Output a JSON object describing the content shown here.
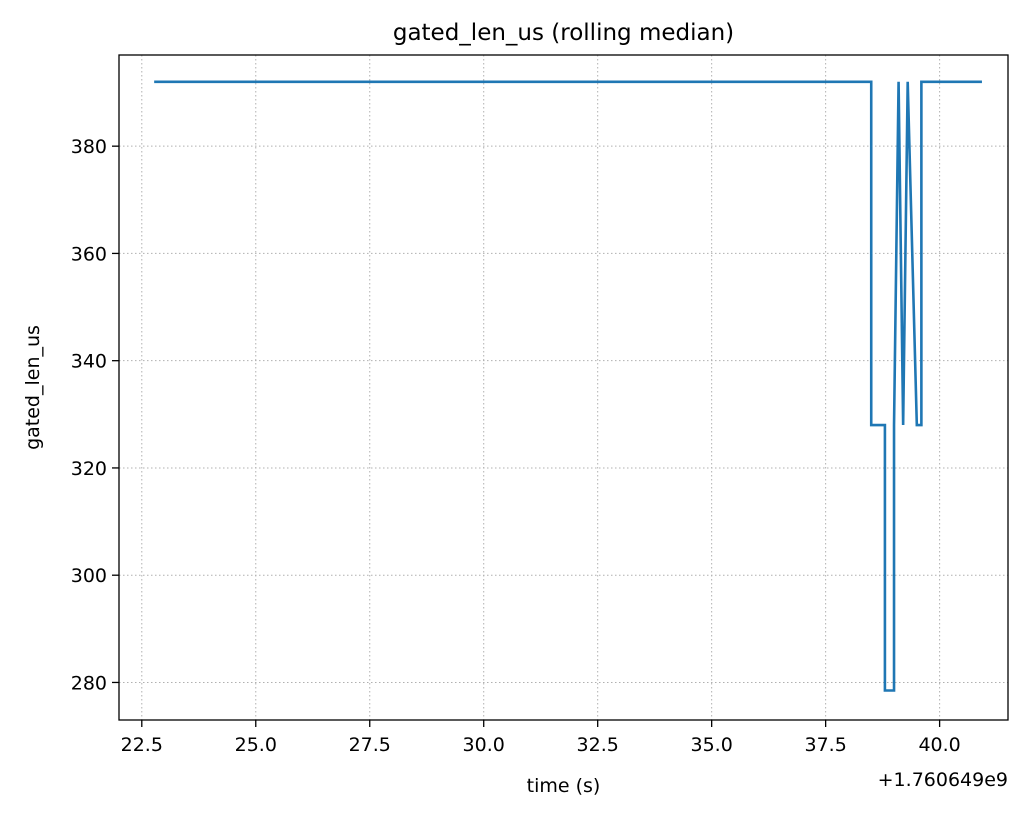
{
  "chart_data": {
    "type": "line",
    "title": "gated_len_us (rolling median)",
    "xlabel": "time (s)",
    "ylabel": "gated_len_us",
    "x_offset_label": "+1.760649e9",
    "xlim": [
      22.0,
      41.5
    ],
    "ylim": [
      273,
      397
    ],
    "grid": true,
    "x_ticks": [
      22.5,
      25.0,
      27.5,
      30.0,
      32.5,
      35.0,
      37.5,
      40.0
    ],
    "x_tick_labels": [
      "22.5",
      "25.0",
      "27.5",
      "30.0",
      "32.5",
      "35.0",
      "37.5",
      "40.0"
    ],
    "y_ticks": [
      280,
      300,
      320,
      340,
      360,
      380
    ],
    "y_tick_labels": [
      "280",
      "300",
      "320",
      "340",
      "360",
      "380"
    ],
    "series_color": "#1f77b4",
    "series": [
      {
        "x": [
          22.8,
          38.5,
          38.5,
          38.8,
          38.8,
          39.0,
          39.0,
          39.1,
          39.1,
          39.2,
          39.2,
          39.3,
          39.3,
          39.5,
          39.5,
          39.6,
          39.6,
          40.9
        ],
        "y": [
          392,
          392,
          328,
          328,
          278.5,
          278.5,
          328,
          392,
          392,
          328,
          328,
          392,
          392,
          328,
          328,
          328,
          392,
          392
        ]
      }
    ]
  }
}
